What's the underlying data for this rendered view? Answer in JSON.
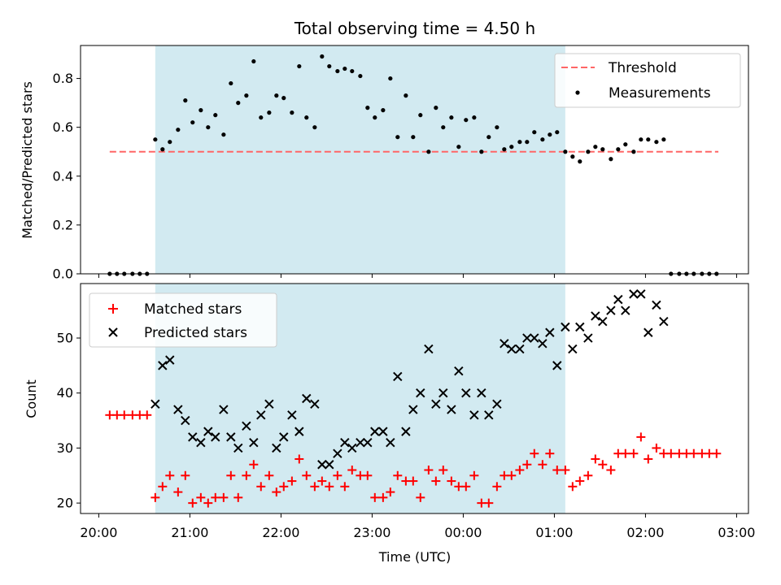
{
  "chart_data": {
    "type": "scatter",
    "title": "Total observing time = 4.50 h",
    "xlabel": "Time (UTC)",
    "x_ticks": [
      "20:00",
      "21:00",
      "22:00",
      "23:00",
      "00:00",
      "01:00",
      "02:00",
      "03:00"
    ],
    "x_range_hours": [
      19.8,
      27.13
    ],
    "shaded_interval_hours": [
      20.62,
      25.12
    ],
    "shade_color": "#add8e6",
    "top": {
      "ylabel": "Matched/Predicted stars",
      "ylim": [
        0,
        0.935
      ],
      "y_ticks": [
        0.0,
        0.2,
        0.4,
        0.6,
        0.8
      ],
      "threshold": {
        "value": 0.5,
        "x_start": 20.12,
        "x_end": 26.8,
        "color": "#ff6666",
        "label": "Threshold"
      },
      "measurements": {
        "label": "Measurements",
        "color": "#000000",
        "x": [
          20.12,
          20.2,
          20.28,
          20.37,
          20.45,
          20.53,
          20.62,
          20.7,
          20.78,
          20.87,
          20.95,
          21.03,
          21.12,
          21.2,
          21.28,
          21.37,
          21.45,
          21.53,
          21.62,
          21.7,
          21.78,
          21.87,
          21.95,
          22.03,
          22.12,
          22.2,
          22.28,
          22.37,
          22.45,
          22.53,
          22.62,
          22.7,
          22.78,
          22.87,
          22.95,
          23.03,
          23.12,
          23.2,
          23.28,
          23.37,
          23.45,
          23.53,
          23.62,
          23.7,
          23.78,
          23.87,
          23.95,
          24.03,
          24.12,
          24.2,
          24.28,
          24.37,
          24.45,
          24.53,
          24.62,
          24.7,
          24.78,
          24.87,
          24.95,
          25.03,
          25.12,
          25.2,
          25.28,
          25.37,
          25.45,
          25.53,
          25.62,
          25.7,
          25.78,
          25.87,
          25.95,
          26.03,
          26.12,
          26.2,
          26.28,
          26.37,
          26.45,
          26.53,
          26.62,
          26.7,
          26.78
        ],
        "y": [
          0,
          0,
          0,
          0,
          0,
          0,
          0.55,
          0.51,
          0.54,
          0.59,
          0.71,
          0.62,
          0.67,
          0.6,
          0.65,
          0.57,
          0.78,
          0.7,
          0.73,
          0.87,
          0.64,
          0.66,
          0.73,
          0.72,
          0.66,
          0.85,
          0.64,
          0.6,
          0.89,
          0.85,
          0.83,
          0.84,
          0.83,
          0.81,
          0.68,
          0.64,
          0.67,
          0.8,
          0.56,
          0.73,
          0.56,
          0.65,
          0.5,
          0.68,
          0.6,
          0.64,
          0.52,
          0.63,
          0.64,
          0.5,
          0.56,
          0.6,
          0.51,
          0.52,
          0.54,
          0.54,
          0.58,
          0.55,
          0.57,
          0.58,
          0.5,
          0.48,
          0.46,
          0.5,
          0.52,
          0.51,
          0.47,
          0.51,
          0.53,
          0.5,
          0.55,
          0.55,
          0.54,
          0.55,
          0,
          0,
          0,
          0,
          0,
          0,
          0
        ]
      }
    },
    "bottom": {
      "ylabel": "Count",
      "ylim": [
        18.1,
        59.9
      ],
      "y_ticks": [
        20,
        30,
        40,
        50
      ],
      "series": [
        {
          "name": "Matched stars",
          "marker": "plus",
          "color": "#ff0000",
          "x": [
            20.12,
            20.2,
            20.28,
            20.37,
            20.45,
            20.53,
            20.62,
            20.7,
            20.78,
            20.87,
            20.95,
            21.03,
            21.12,
            21.2,
            21.28,
            21.37,
            21.45,
            21.53,
            21.62,
            21.7,
            21.78,
            21.87,
            21.95,
            22.03,
            22.12,
            22.2,
            22.28,
            22.37,
            22.45,
            22.53,
            22.62,
            22.7,
            22.78,
            22.87,
            22.95,
            23.03,
            23.12,
            23.2,
            23.28,
            23.37,
            23.45,
            23.53,
            23.62,
            23.7,
            23.78,
            23.87,
            23.95,
            24.03,
            24.12,
            24.2,
            24.28,
            24.37,
            24.45,
            24.53,
            24.62,
            24.7,
            24.78,
            24.87,
            24.95,
            25.03,
            25.12,
            25.2,
            25.28,
            25.37,
            25.45,
            25.53,
            25.62,
            25.7,
            25.78,
            25.87,
            25.95,
            26.03,
            26.12,
            26.2,
            26.28,
            26.37,
            26.45,
            26.53,
            26.62,
            26.7,
            26.78
          ],
          "y": [
            36,
            36,
            36,
            36,
            36,
            36,
            21,
            23,
            25,
            22,
            25,
            20,
            21,
            20,
            21,
            21,
            25,
            21,
            25,
            27,
            23,
            25,
            22,
            23,
            24,
            28,
            25,
            23,
            24,
            23,
            25,
            23,
            26,
            25,
            25,
            21,
            21,
            22,
            25,
            24,
            24,
            21,
            26,
            24,
            26,
            24,
            23,
            23,
            25,
            20,
            20,
            23,
            25,
            25,
            26,
            27,
            29,
            27,
            29,
            26,
            26,
            23,
            24,
            25,
            28,
            27,
            26,
            29,
            29,
            29,
            32,
            28,
            30,
            29,
            29,
            29,
            29,
            29,
            29,
            29,
            29
          ]
        },
        {
          "name": "Predicted stars",
          "marker": "cross",
          "color": "#000000",
          "x": [
            20.62,
            20.7,
            20.78,
            20.87,
            20.95,
            21.03,
            21.12,
            21.2,
            21.28,
            21.37,
            21.45,
            21.53,
            21.62,
            21.7,
            21.78,
            21.87,
            21.95,
            22.03,
            22.12,
            22.2,
            22.28,
            22.37,
            22.45,
            22.53,
            22.62,
            22.7,
            22.78,
            22.87,
            22.95,
            23.03,
            23.12,
            23.2,
            23.28,
            23.37,
            23.45,
            23.53,
            23.62,
            23.7,
            23.78,
            23.87,
            23.95,
            24.03,
            24.12,
            24.2,
            24.28,
            24.37,
            24.45,
            24.53,
            24.62,
            24.7,
            24.78,
            24.87,
            24.95,
            25.03,
            25.12,
            25.2,
            25.28,
            25.37,
            25.45,
            25.53,
            25.62,
            25.7,
            25.78,
            25.87,
            25.95,
            26.03,
            26.12,
            26.2
          ],
          "y": [
            38,
            45,
            46,
            37,
            35,
            32,
            31,
            33,
            32,
            37,
            32,
            30,
            34,
            31,
            36,
            38,
            30,
            32,
            36,
            33,
            39,
            38,
            27,
            27,
            29,
            31,
            30,
            31,
            31,
            33,
            33,
            31,
            43,
            33,
            37,
            40,
            48,
            38,
            40,
            37,
            44,
            40,
            36,
            40,
            36,
            38,
            49,
            48,
            48,
            50,
            50,
            49,
            51,
            45,
            52,
            48,
            52,
            50,
            54,
            53,
            55,
            57,
            55,
            58,
            58,
            51,
            56,
            53
          ]
        }
      ]
    },
    "legend_top": "top-right",
    "legend_bottom": "top-left"
  }
}
